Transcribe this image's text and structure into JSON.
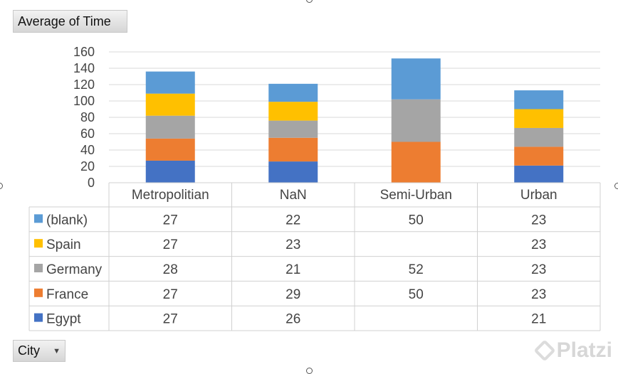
{
  "value_field": {
    "label": "Average of Time"
  },
  "axis_field": {
    "label": "City"
  },
  "watermark": {
    "text": "Platzi"
  },
  "chart_data": {
    "type": "bar",
    "stacked": true,
    "title": "",
    "xlabel": "",
    "ylabel": "",
    "ylim": [
      0,
      160
    ],
    "yticks": [
      0,
      20,
      40,
      60,
      80,
      100,
      120,
      140,
      160
    ],
    "grid": true,
    "categories": [
      "Metropolitian",
      "NaN",
      "Semi-Urban",
      "Urban"
    ],
    "series": [
      {
        "name": "Egypt",
        "color": "#4472c4",
        "values": [
          27,
          26,
          null,
          21
        ]
      },
      {
        "name": "France",
        "color": "#ed7d31",
        "values": [
          27,
          29,
          50,
          23
        ]
      },
      {
        "name": "Germany",
        "color": "#a5a5a5",
        "values": [
          28,
          21,
          52,
          23
        ]
      },
      {
        "name": "Spain",
        "color": "#ffc000",
        "values": [
          27,
          23,
          null,
          23
        ]
      },
      {
        "name": "(blank)",
        "color": "#5b9bd5",
        "values": [
          27,
          22,
          50,
          23
        ]
      }
    ],
    "data_table": true
  }
}
